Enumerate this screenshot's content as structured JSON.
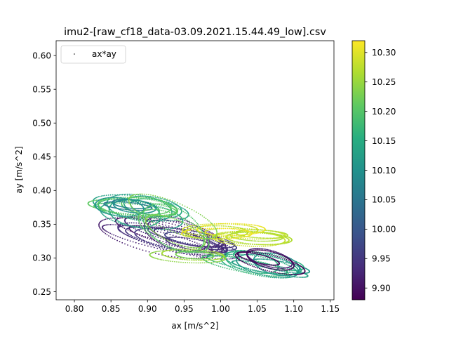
{
  "chart_data": {
    "type": "scatter",
    "title": "imu2-[raw_cf18_data-03.09.2021.15.44.49_low].csv",
    "xlabel": "ax [m/s^2]",
    "ylabel": "ay [m/s^2]",
    "xlim": [
      0.775,
      1.155
    ],
    "ylim": [
      0.238,
      0.622
    ],
    "xticks": [
      "0.80",
      "0.85",
      "0.90",
      "0.95",
      "1.00",
      "1.05",
      "1.10",
      "1.15"
    ],
    "yticks": [
      "0.25",
      "0.30",
      "0.35",
      "0.40",
      "0.45",
      "0.50",
      "0.55",
      "0.60"
    ],
    "grid": false,
    "legend": {
      "placement": "top-left",
      "entries": [
        "ax*ay"
      ]
    },
    "colorbar": {
      "colormap": "viridis",
      "range": [
        9.88,
        10.32
      ],
      "ticks": [
        "9.90",
        "9.95",
        "10.00",
        "10.05",
        "10.10",
        "10.15",
        "10.20",
        "10.25",
        "10.30"
      ]
    },
    "clusters": [
      {
        "cx": 0.93,
        "cy": 0.33,
        "rx": 0.08,
        "ry": 0.022,
        "tilt": -0.25,
        "c": 9.92,
        "n": 9
      },
      {
        "cx": 0.96,
        "cy": 0.325,
        "rx": 0.07,
        "ry": 0.015,
        "tilt": -0.2,
        "c": 9.95,
        "n": 6
      },
      {
        "cx": 0.9,
        "cy": 0.37,
        "rx": 0.07,
        "ry": 0.018,
        "tilt": -0.15,
        "c": 10.13,
        "n": 6
      },
      {
        "cx": 0.88,
        "cy": 0.375,
        "rx": 0.065,
        "ry": 0.015,
        "tilt": -0.1,
        "c": 10.19,
        "n": 5
      },
      {
        "cx": 0.87,
        "cy": 0.378,
        "rx": 0.05,
        "ry": 0.012,
        "tilt": -0.1,
        "c": 10.08,
        "n": 4
      },
      {
        "cx": 1.05,
        "cy": 0.29,
        "rx": 0.06,
        "ry": 0.016,
        "tilt": -0.2,
        "c": 10.16,
        "n": 6
      },
      {
        "cx": 1.07,
        "cy": 0.285,
        "rx": 0.05,
        "ry": 0.014,
        "tilt": -0.2,
        "c": 10.11,
        "n": 4
      },
      {
        "cx": 1.06,
        "cy": 0.295,
        "rx": 0.05,
        "ry": 0.012,
        "tilt": -0.25,
        "c": 9.9,
        "n": 4
      },
      {
        "cx": 1.05,
        "cy": 0.332,
        "rx": 0.06,
        "ry": 0.01,
        "tilt": -0.05,
        "c": 10.27,
        "n": 6
      },
      {
        "cx": 1.0,
        "cy": 0.34,
        "rx": 0.05,
        "ry": 0.01,
        "tilt": 0.0,
        "c": 10.29,
        "n": 4
      },
      {
        "cx": 0.95,
        "cy": 0.305,
        "rx": 0.05,
        "ry": 0.01,
        "tilt": -0.05,
        "c": 10.25,
        "n": 3
      },
      {
        "cx": 0.93,
        "cy": 0.35,
        "rx": 0.06,
        "ry": 0.03,
        "tilt": -0.4,
        "c": 10.22,
        "n": 4
      }
    ]
  }
}
